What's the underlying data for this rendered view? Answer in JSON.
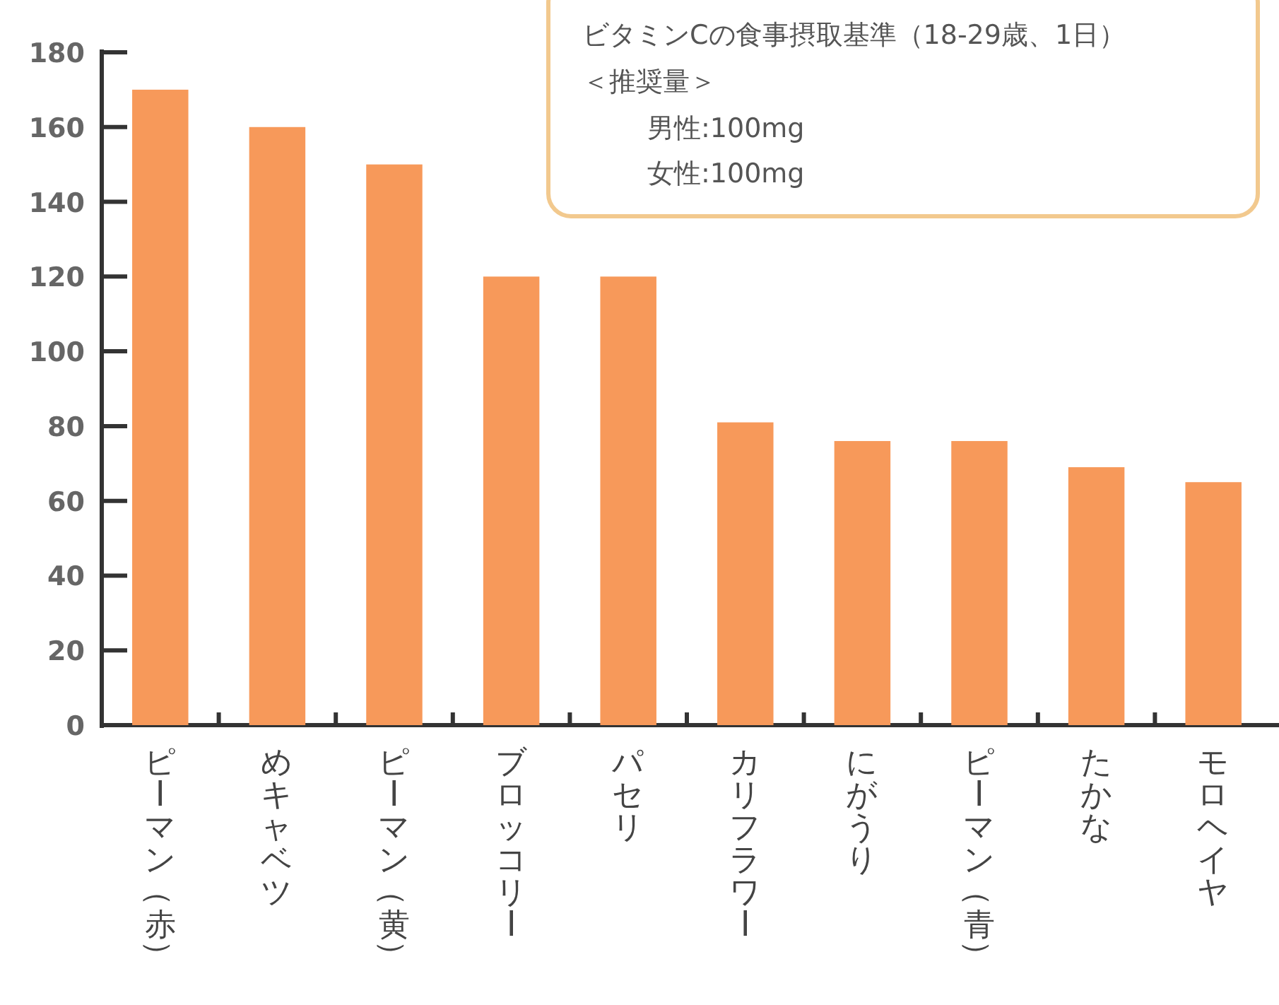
{
  "chart_data": {
    "type": "bar",
    "categories": [
      "ピーマン（赤）",
      "めキャベツ",
      "ピーマン（黄）",
      "ブロッコリー",
      "パセリ",
      "カリフラワー",
      "にがうり",
      "ピーマン（青）",
      "たかな",
      "モロヘイヤ"
    ],
    "values": [
      170,
      160,
      150,
      120,
      120,
      81,
      76,
      76,
      69,
      65
    ],
    "color": "#f7995a",
    "ylim": [
      0,
      180
    ],
    "yticks": [
      0,
      20,
      40,
      60,
      80,
      100,
      120,
      140,
      160,
      180
    ],
    "annotations": [
      "ビタミンCの食事摂取基準（18-29歳、1日）",
      "＜推奨量＞",
      "男性:100mg",
      "女性:100mg"
    ]
  }
}
